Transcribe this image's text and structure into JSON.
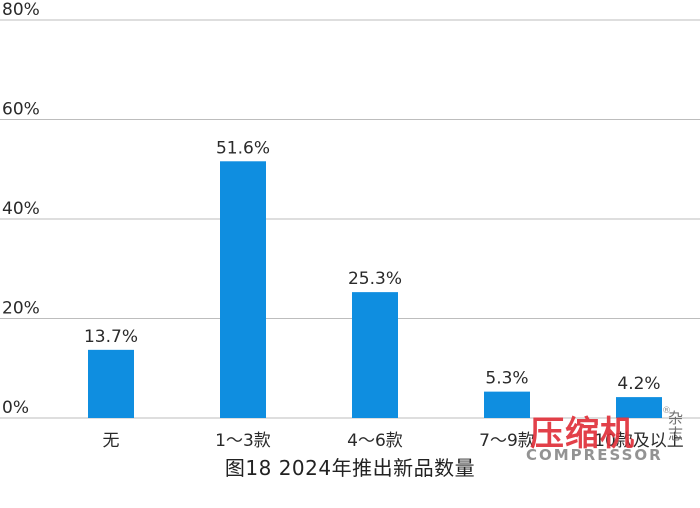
{
  "chart_data": {
    "type": "bar",
    "categories": [
      "无",
      "1～3款",
      "4～6款",
      "7～9款",
      "10款及以上"
    ],
    "values": [
      13.7,
      51.6,
      25.3,
      5.3,
      4.2
    ],
    "data_labels": [
      "13.7%",
      "51.6%",
      "25.3%",
      "5.3%",
      "4.2%"
    ],
    "ylim": [
      0,
      80
    ],
    "y_ticks": [
      0,
      20,
      40,
      60,
      80
    ],
    "y_tick_labels": [
      "0%",
      "20%",
      "40%",
      "60%",
      "80%"
    ],
    "grid": true,
    "bar_color": "#0f8ee0",
    "grid_color": "#bdbdbd"
  },
  "caption": "图18   2024年推出新品数量",
  "watermark": {
    "cn": "压缩机",
    "small": "杂志",
    "reg": "®",
    "en": "COMPRESSOR"
  }
}
